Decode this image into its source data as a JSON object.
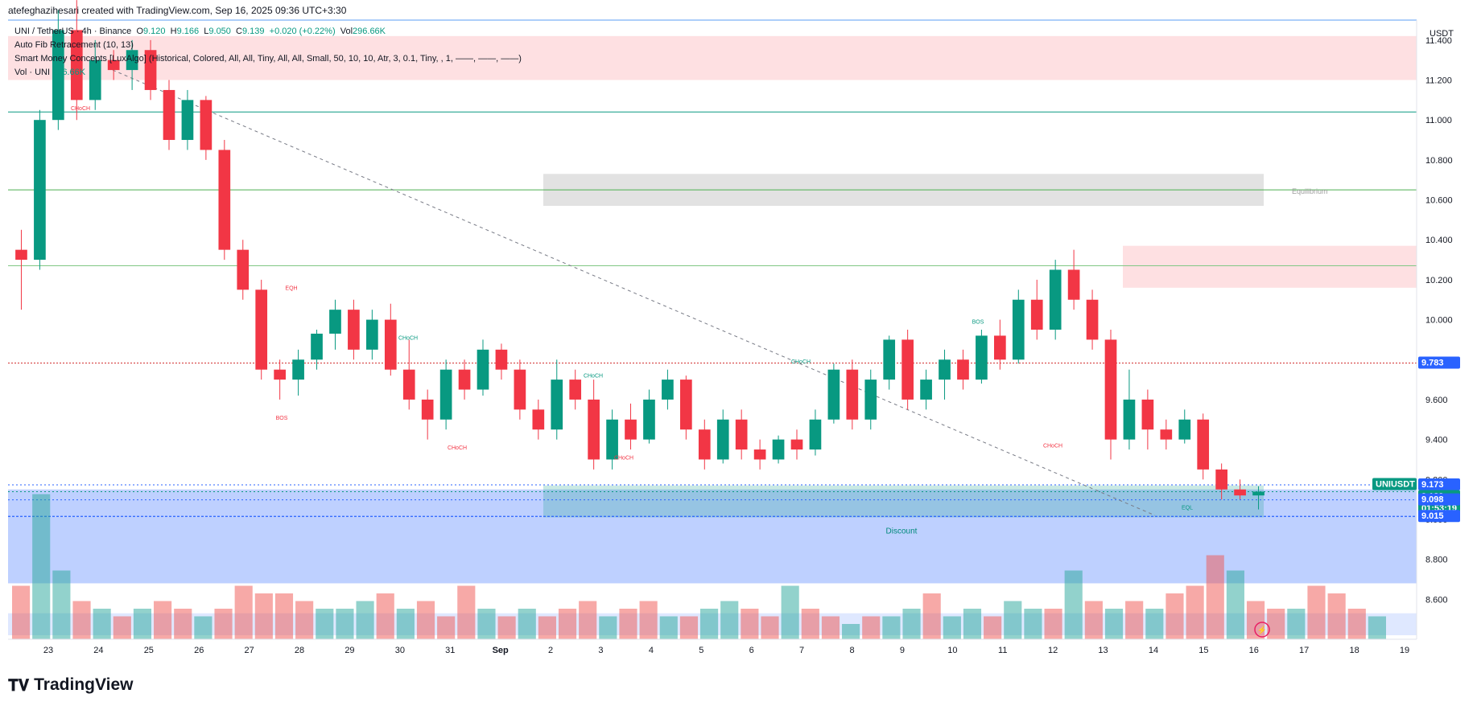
{
  "header": {
    "created_by": "atefeghazihesari created with TradingView.com, Sep 16, 2025 09:36 UTC+3:30"
  },
  "legend": {
    "symbol": "UNI / TetherUS · 4h · Binance",
    "open_label": "O",
    "open": "9.120",
    "high_label": "H",
    "high": "9.166",
    "low_label": "L",
    "low": "9.050",
    "close_label": "C",
    "close": "9.139",
    "change": "+0.020 (+0.22%)",
    "vol_label": "Vol",
    "vol": "296.66K",
    "indicator1": "Auto Fib Retracement (10, 13)",
    "indicator2": "Smart Money Concepts [LuxAlgo] (Historical, Colored, All, All, Tiny, All, All, Small, 50, 10, 10, Atr, 3, 0.1, Tiny, , 1, ——, ——, ——)",
    "indicator3_label": "Vol · UNI",
    "indicator3_value": "296.66K"
  },
  "currency": "USDT",
  "logo_text": "TradingView",
  "chart_data": {
    "type": "candlestick",
    "symbol": "UNIUSDT",
    "interval": "4h",
    "y_ticks": [
      "11.400",
      "11.200",
      "11.000",
      "10.800",
      "10.600",
      "10.400",
      "10.200",
      "10.000",
      "9.800",
      "9.600",
      "9.400",
      "9.200",
      "9.000",
      "8.800",
      "8.600"
    ],
    "x_labels": [
      "23",
      "24",
      "25",
      "26",
      "27",
      "28",
      "29",
      "30",
      "31",
      "Sep",
      "2",
      "3",
      "4",
      "5",
      "6",
      "7",
      "8",
      "9",
      "10",
      "11",
      "12",
      "13",
      "14",
      "15",
      "16",
      "17",
      "18",
      "19"
    ],
    "price_tags": [
      {
        "label": "9.783",
        "color": "#2962ff"
      },
      {
        "label": "9.173",
        "color": "#2962ff"
      },
      {
        "label": "UNIUSDT",
        "color": "#089981"
      },
      {
        "label": "9.139",
        "color": "#089981"
      },
      {
        "label": "01:53:19",
        "color": "#089981"
      },
      {
        "label": "9.098",
        "color": "#2962ff"
      },
      {
        "label": "9.015",
        "color": "#2962ff"
      }
    ],
    "zone_labels": {
      "equilibrium": "Equilibrium",
      "discount": "Discount"
    },
    "structure_labels": [
      "CHoCH",
      "EQH",
      "BOS",
      "CHoCH",
      "CHoCH",
      "CHoCH",
      "CHoCH",
      "CHoCH",
      "BOS",
      "CHoCH",
      "EQL"
    ],
    "candles_sampled": [
      {
        "o": 10.35,
        "h": 10.45,
        "l": 10.05,
        "c": 10.3
      },
      {
        "o": 10.3,
        "h": 11.05,
        "l": 10.25,
        "c": 11.0
      },
      {
        "o": 11.0,
        "h": 11.55,
        "l": 10.95,
        "c": 11.45
      },
      {
        "o": 11.45,
        "h": 11.6,
        "l": 11.0,
        "c": 11.1
      },
      {
        "o": 11.1,
        "h": 11.4,
        "l": 11.05,
        "c": 11.3
      },
      {
        "o": 11.3,
        "h": 11.35,
        "l": 11.2,
        "c": 11.25
      },
      {
        "o": 11.25,
        "h": 11.4,
        "l": 11.15,
        "c": 11.35
      },
      {
        "o": 11.35,
        "h": 11.4,
        "l": 11.1,
        "c": 11.15
      },
      {
        "o": 11.15,
        "h": 11.2,
        "l": 10.85,
        "c": 10.9
      },
      {
        "o": 10.9,
        "h": 11.15,
        "l": 10.85,
        "c": 11.1
      },
      {
        "o": 11.1,
        "h": 11.12,
        "l": 10.8,
        "c": 10.85
      },
      {
        "o": 10.85,
        "h": 10.9,
        "l": 10.3,
        "c": 10.35
      },
      {
        "o": 10.35,
        "h": 10.4,
        "l": 10.1,
        "c": 10.15
      },
      {
        "o": 10.15,
        "h": 10.2,
        "l": 9.7,
        "c": 9.75
      },
      {
        "o": 9.75,
        "h": 9.8,
        "l": 9.6,
        "c": 9.7
      },
      {
        "o": 9.7,
        "h": 9.85,
        "l": 9.62,
        "c": 9.8
      },
      {
        "o": 9.8,
        "h": 9.95,
        "l": 9.75,
        "c": 9.93
      },
      {
        "o": 9.93,
        "h": 10.1,
        "l": 9.85,
        "c": 10.05
      },
      {
        "o": 10.05,
        "h": 10.1,
        "l": 9.8,
        "c": 9.85
      },
      {
        "o": 9.85,
        "h": 10.05,
        "l": 9.8,
        "c": 10.0
      },
      {
        "o": 10.0,
        "h": 10.08,
        "l": 9.72,
        "c": 9.75
      },
      {
        "o": 9.75,
        "h": 9.9,
        "l": 9.55,
        "c": 9.6
      },
      {
        "o": 9.6,
        "h": 9.65,
        "l": 9.4,
        "c": 9.5
      },
      {
        "o": 9.5,
        "h": 9.8,
        "l": 9.45,
        "c": 9.75
      },
      {
        "o": 9.75,
        "h": 9.8,
        "l": 9.6,
        "c": 9.65
      },
      {
        "o": 9.65,
        "h": 9.9,
        "l": 9.62,
        "c": 9.85
      },
      {
        "o": 9.85,
        "h": 9.88,
        "l": 9.7,
        "c": 9.75
      },
      {
        "o": 9.75,
        "h": 9.8,
        "l": 9.5,
        "c": 9.55
      },
      {
        "o": 9.55,
        "h": 9.6,
        "l": 9.4,
        "c": 9.45
      },
      {
        "o": 9.45,
        "h": 9.8,
        "l": 9.4,
        "c": 9.7
      },
      {
        "o": 9.7,
        "h": 9.75,
        "l": 9.55,
        "c": 9.6
      },
      {
        "o": 9.6,
        "h": 9.7,
        "l": 9.25,
        "c": 9.3
      },
      {
        "o": 9.3,
        "h": 9.55,
        "l": 9.25,
        "c": 9.5
      },
      {
        "o": 9.5,
        "h": 9.58,
        "l": 9.35,
        "c": 9.4
      },
      {
        "o": 9.4,
        "h": 9.65,
        "l": 9.38,
        "c": 9.6
      },
      {
        "o": 9.6,
        "h": 9.75,
        "l": 9.55,
        "c": 9.7
      },
      {
        "o": 9.7,
        "h": 9.72,
        "l": 9.4,
        "c": 9.45
      },
      {
        "o": 9.45,
        "h": 9.5,
        "l": 9.25,
        "c": 9.3
      },
      {
        "o": 9.3,
        "h": 9.55,
        "l": 9.28,
        "c": 9.5
      },
      {
        "o": 9.5,
        "h": 9.55,
        "l": 9.3,
        "c": 9.35
      },
      {
        "o": 9.35,
        "h": 9.4,
        "l": 9.25,
        "c": 9.3
      },
      {
        "o": 9.3,
        "h": 9.42,
        "l": 9.28,
        "c": 9.4
      },
      {
        "o": 9.4,
        "h": 9.45,
        "l": 9.3,
        "c": 9.35
      },
      {
        "o": 9.35,
        "h": 9.55,
        "l": 9.32,
        "c": 9.5
      },
      {
        "o": 9.5,
        "h": 9.78,
        "l": 9.48,
        "c": 9.75
      },
      {
        "o": 9.75,
        "h": 9.8,
        "l": 9.45,
        "c": 9.5
      },
      {
        "o": 9.5,
        "h": 9.75,
        "l": 9.45,
        "c": 9.7
      },
      {
        "o": 9.7,
        "h": 9.92,
        "l": 9.65,
        "c": 9.9
      },
      {
        "o": 9.9,
        "h": 9.95,
        "l": 9.55,
        "c": 9.6
      },
      {
        "o": 9.6,
        "h": 9.75,
        "l": 9.55,
        "c": 9.7
      },
      {
        "o": 9.7,
        "h": 9.85,
        "l": 9.6,
        "c": 9.8
      },
      {
        "o": 9.8,
        "h": 9.85,
        "l": 9.65,
        "c": 9.7
      },
      {
        "o": 9.7,
        "h": 9.95,
        "l": 9.68,
        "c": 9.92
      },
      {
        "o": 9.92,
        "h": 10.0,
        "l": 9.75,
        "c": 9.8
      },
      {
        "o": 9.8,
        "h": 10.15,
        "l": 9.78,
        "c": 10.1
      },
      {
        "o": 10.1,
        "h": 10.2,
        "l": 9.9,
        "c": 9.95
      },
      {
        "o": 9.95,
        "h": 10.3,
        "l": 9.9,
        "c": 10.25
      },
      {
        "o": 10.25,
        "h": 10.35,
        "l": 10.05,
        "c": 10.1
      },
      {
        "o": 10.1,
        "h": 10.15,
        "l": 9.85,
        "c": 9.9
      },
      {
        "o": 9.9,
        "h": 9.95,
        "l": 9.3,
        "c": 9.4
      },
      {
        "o": 9.4,
        "h": 9.75,
        "l": 9.35,
        "c": 9.6
      },
      {
        "o": 9.6,
        "h": 9.65,
        "l": 9.35,
        "c": 9.45
      },
      {
        "o": 9.45,
        "h": 9.5,
        "l": 9.35,
        "c": 9.4
      },
      {
        "o": 9.4,
        "h": 9.55,
        "l": 9.38,
        "c": 9.5
      },
      {
        "o": 9.5,
        "h": 9.53,
        "l": 9.2,
        "c": 9.25
      },
      {
        "o": 9.25,
        "h": 9.28,
        "l": 9.1,
        "c": 9.15
      },
      {
        "o": 9.15,
        "h": 9.2,
        "l": 9.1,
        "c": 9.12
      },
      {
        "o": 9.12,
        "h": 9.166,
        "l": 9.05,
        "c": 9.139
      }
    ],
    "volume_sampled": [
      0.35,
      0.95,
      0.45,
      0.25,
      0.2,
      0.15,
      0.2,
      0.25,
      0.2,
      0.15,
      0.2,
      0.35,
      0.3,
      0.3,
      0.25,
      0.2,
      0.2,
      0.25,
      0.3,
      0.2,
      0.25,
      0.15,
      0.35,
      0.2,
      0.15,
      0.2,
      0.15,
      0.2,
      0.25,
      0.15,
      0.2,
      0.25,
      0.15,
      0.15,
      0.2,
      0.25,
      0.2,
      0.15,
      0.35,
      0.2,
      0.15,
      0.1,
      0.15,
      0.15,
      0.2,
      0.3,
      0.15,
      0.2,
      0.15,
      0.25,
      0.2,
      0.2,
      0.45,
      0.25,
      0.2,
      0.25,
      0.2,
      0.3,
      0.35,
      0.55,
      0.45,
      0.25,
      0.2,
      0.2,
      0.35,
      0.3,
      0.2,
      0.15
    ]
  }
}
